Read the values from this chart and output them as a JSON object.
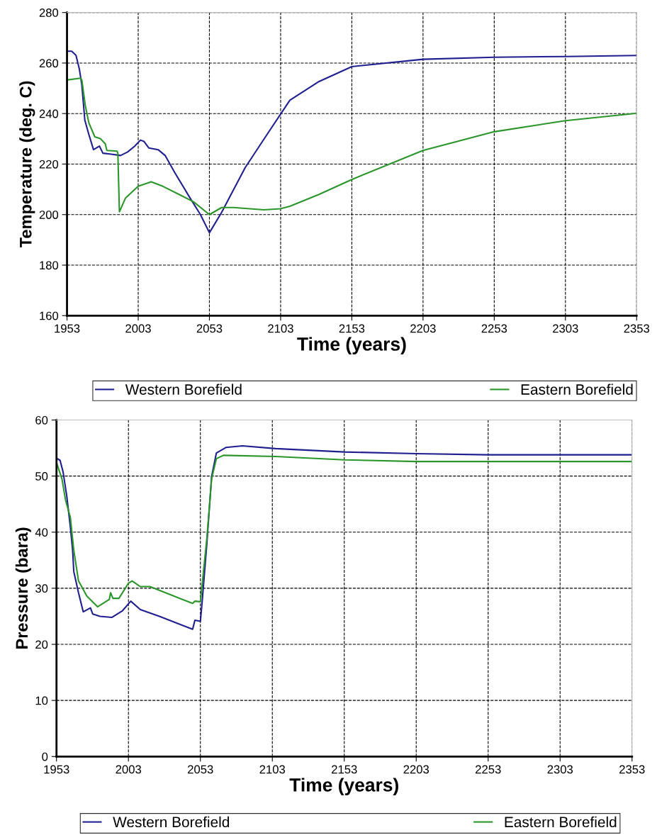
{
  "chart_data": [
    {
      "type": "line",
      "xlabel": "Time (years)",
      "ylabel": "Temperature (deg. C)",
      "xlim": [
        1953,
        2353
      ],
      "xticks": [
        1953,
        2003,
        2053,
        2103,
        2153,
        2203,
        2253,
        2303,
        2353
      ],
      "ylim": [
        160,
        280
      ],
      "yticks": [
        160,
        180,
        200,
        220,
        240,
        260,
        280
      ],
      "grid": true,
      "legend": "bottom",
      "marker": "none",
      "line_style": "solid",
      "series": [
        {
          "name": "Western Borefield",
          "color": "#1f1f8f",
          "x": [
            1953,
            1956.3,
            1959.3,
            1961.7,
            1963.4,
            1965.5,
            1968.3,
            1971.6,
            1975.8,
            1978.2,
            1984,
            1990.6,
            1995.6,
            2000.5,
            2004.6,
            2007,
            2010.4,
            2017,
            2021.9,
            2028.6,
            2038.5,
            2046.7,
            2053,
            2061.6,
            2078.1,
            2094.6,
            2109.5,
            2130,
            2153,
            2203,
            2253,
            2303,
            2353
          ],
          "values": [
            264.7,
            264.7,
            263.1,
            257.5,
            251.4,
            237.4,
            231.8,
            225.7,
            227.1,
            224.3,
            223.9,
            223.4,
            224.8,
            227.1,
            229.5,
            229,
            226.4,
            225.7,
            223.4,
            216.7,
            207.4,
            200,
            192.8,
            200.9,
            218.6,
            232.7,
            245.3,
            252.7,
            258.6,
            261.5,
            262.3,
            262.6,
            263
          ]
        },
        {
          "name": "Eastern Borefield",
          "color": "#2a962a",
          "x": [
            1953,
            1962.6,
            1963.4,
            1965.9,
            1968.3,
            1972.5,
            1976.6,
            1979.9,
            1981,
            1988.2,
            1988.7,
            1989.8,
            1994,
            2003,
            2012.1,
            2020.3,
            2041.8,
            2053,
            2061.6,
            2069.8,
            2091.3,
            2102.8,
            2109.5,
            2130,
            2153,
            2203,
            2253,
            2303,
            2353
          ],
          "values": [
            253.3,
            254,
            253.3,
            243,
            236.4,
            230.8,
            230,
            228,
            225.4,
            225.1,
            224.3,
            201.1,
            206.5,
            211.2,
            213,
            211.2,
            205.1,
            200,
            202.8,
            202.8,
            201.9,
            202.3,
            203.3,
            208,
            213.9,
            225.4,
            232.8,
            237.2,
            240.1
          ]
        }
      ]
    },
    {
      "type": "line",
      "xlabel": "Time (years)",
      "ylabel": "Pressure (bara)",
      "xlim": [
        1953,
        2353
      ],
      "xticks": [
        1953,
        2003,
        2053,
        2103,
        2153,
        2203,
        2253,
        2303,
        2353
      ],
      "ylim": [
        0,
        60
      ],
      "yticks": [
        0,
        10,
        20,
        30,
        40,
        50,
        60
      ],
      "grid": true,
      "legend": "bottom",
      "marker": "none",
      "line_style": "solid",
      "series": [
        {
          "name": "Western Borefield",
          "color": "#1f1f8f",
          "x": [
            1953,
            1955.5,
            1957.6,
            1960.1,
            1962.6,
            1964.2,
            1965,
            1968.3,
            1971.6,
            1976.6,
            1978.2,
            1983.2,
            1991.4,
            1998.9,
            2004.6,
            2011.3,
            2024.5,
            2047.6,
            2049.2,
            2053,
            2054.2,
            2057.5,
            2060.8,
            2064.1,
            2070.7,
            2082.2,
            2105.3,
            2153,
            2203,
            2253,
            2353
          ],
          "values": [
            53.2,
            52.8,
            50.7,
            46.5,
            41,
            36.8,
            33,
            29.2,
            25.8,
            26.5,
            25.4,
            25,
            24.8,
            26,
            27.7,
            26.2,
            25,
            22.7,
            24.3,
            24.1,
            27.5,
            38,
            49.9,
            54.1,
            55.1,
            55.4,
            54.9,
            54.3,
            54,
            53.8,
            53.8
          ]
        },
        {
          "name": "Eastern Borefield",
          "color": "#2a962a",
          "x": [
            1953,
            1956.8,
            1959.3,
            1962.6,
            1965,
            1968.3,
            1974.1,
            1979.9,
            1981.5,
            1989.7,
            1990.6,
            1992.2,
            1996.4,
            2003,
            2005.5,
            2011.3,
            2017.9,
            2047.6,
            2049.2,
            2053,
            2057.5,
            2060.8,
            2064.1,
            2069,
            2105.3,
            2153,
            2203,
            2353
          ],
          "values": [
            52.4,
            49.5,
            45.7,
            42.7,
            36.8,
            31.3,
            28.6,
            27.1,
            26.7,
            28,
            29.2,
            28.2,
            28.2,
            30.9,
            31.3,
            30.3,
            30.3,
            27.3,
            27.7,
            27.6,
            38.9,
            49.5,
            53.1,
            53.7,
            53.5,
            52.9,
            52.6,
            52.6
          ]
        }
      ]
    }
  ]
}
